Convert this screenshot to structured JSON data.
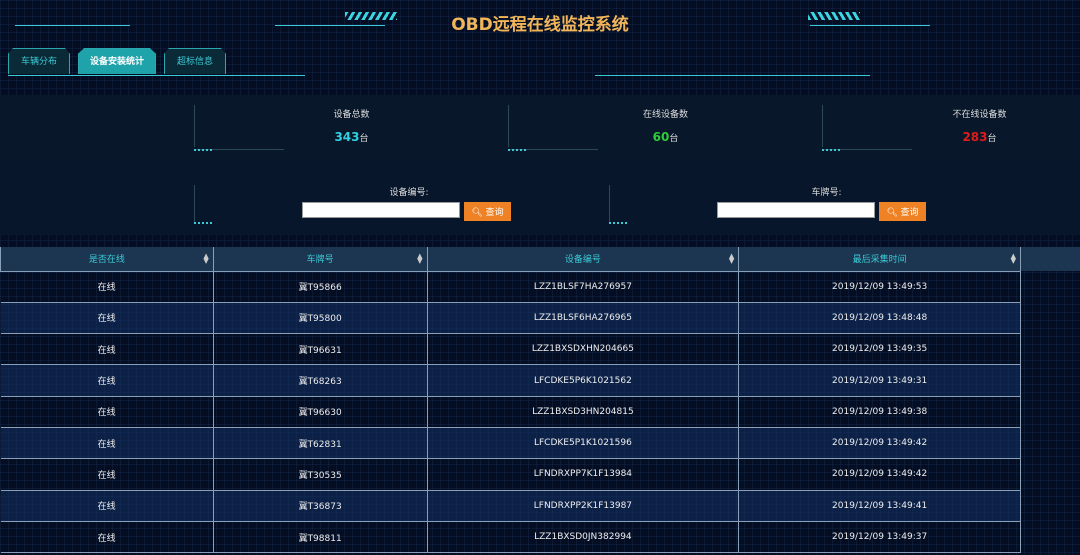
{
  "header": {
    "title": "OBD远程在线监控系统"
  },
  "tabs": [
    {
      "label": "车辆分布"
    },
    {
      "label": "设备安装统计",
      "active": true
    },
    {
      "label": "超标信息"
    }
  ],
  "stats": [
    {
      "label": "设备总数",
      "value": "343",
      "unit": "台",
      "color": "#2fd0e0"
    },
    {
      "label": "在线设备数",
      "value": "60",
      "unit": "台",
      "color": "#2ecc3a"
    },
    {
      "label": "不在线设备数",
      "value": "283",
      "unit": "台",
      "color": "#e01b1b"
    }
  ],
  "search": [
    {
      "label": "设备编号:",
      "value": "",
      "button": "查询",
      "icon": "search-icon"
    },
    {
      "label": "车牌号:",
      "value": "",
      "button": "查询",
      "icon": "search-icon"
    }
  ],
  "table": {
    "columns": [
      "是否在线",
      "车牌号",
      "设备编号",
      "最后采集时间"
    ],
    "rows": [
      [
        "在线",
        "冀T95866",
        "LZZ1BLSF7HA276957",
        "2019/12/09 13:49:53"
      ],
      [
        "在线",
        "冀T95800",
        "LZZ1BLSF6HA276965",
        "2019/12/09 13:48:48"
      ],
      [
        "在线",
        "冀T96631",
        "LZZ1BXSDXHN204665",
        "2019/12/09 13:49:35"
      ],
      [
        "在线",
        "冀T68263",
        "LFCDKE5P6K1021562",
        "2019/12/09 13:49:31"
      ],
      [
        "在线",
        "冀T96630",
        "LZZ1BXSD3HN204815",
        "2019/12/09 13:49:38"
      ],
      [
        "在线",
        "冀T62831",
        "LFCDKE5P1K1021596",
        "2019/12/09 13:49:42"
      ],
      [
        "在线",
        "冀T30535",
        "LFNDRXPP7K1F13984",
        "2019/12/09 13:49:42"
      ],
      [
        "在线",
        "冀T36873",
        "LFNDRXPP2K1F13987",
        "2019/12/09 13:49:41"
      ],
      [
        "在线",
        "冀T98811",
        "LZZ1BXSD0JN382994",
        "2019/12/09 13:49:37"
      ]
    ]
  }
}
